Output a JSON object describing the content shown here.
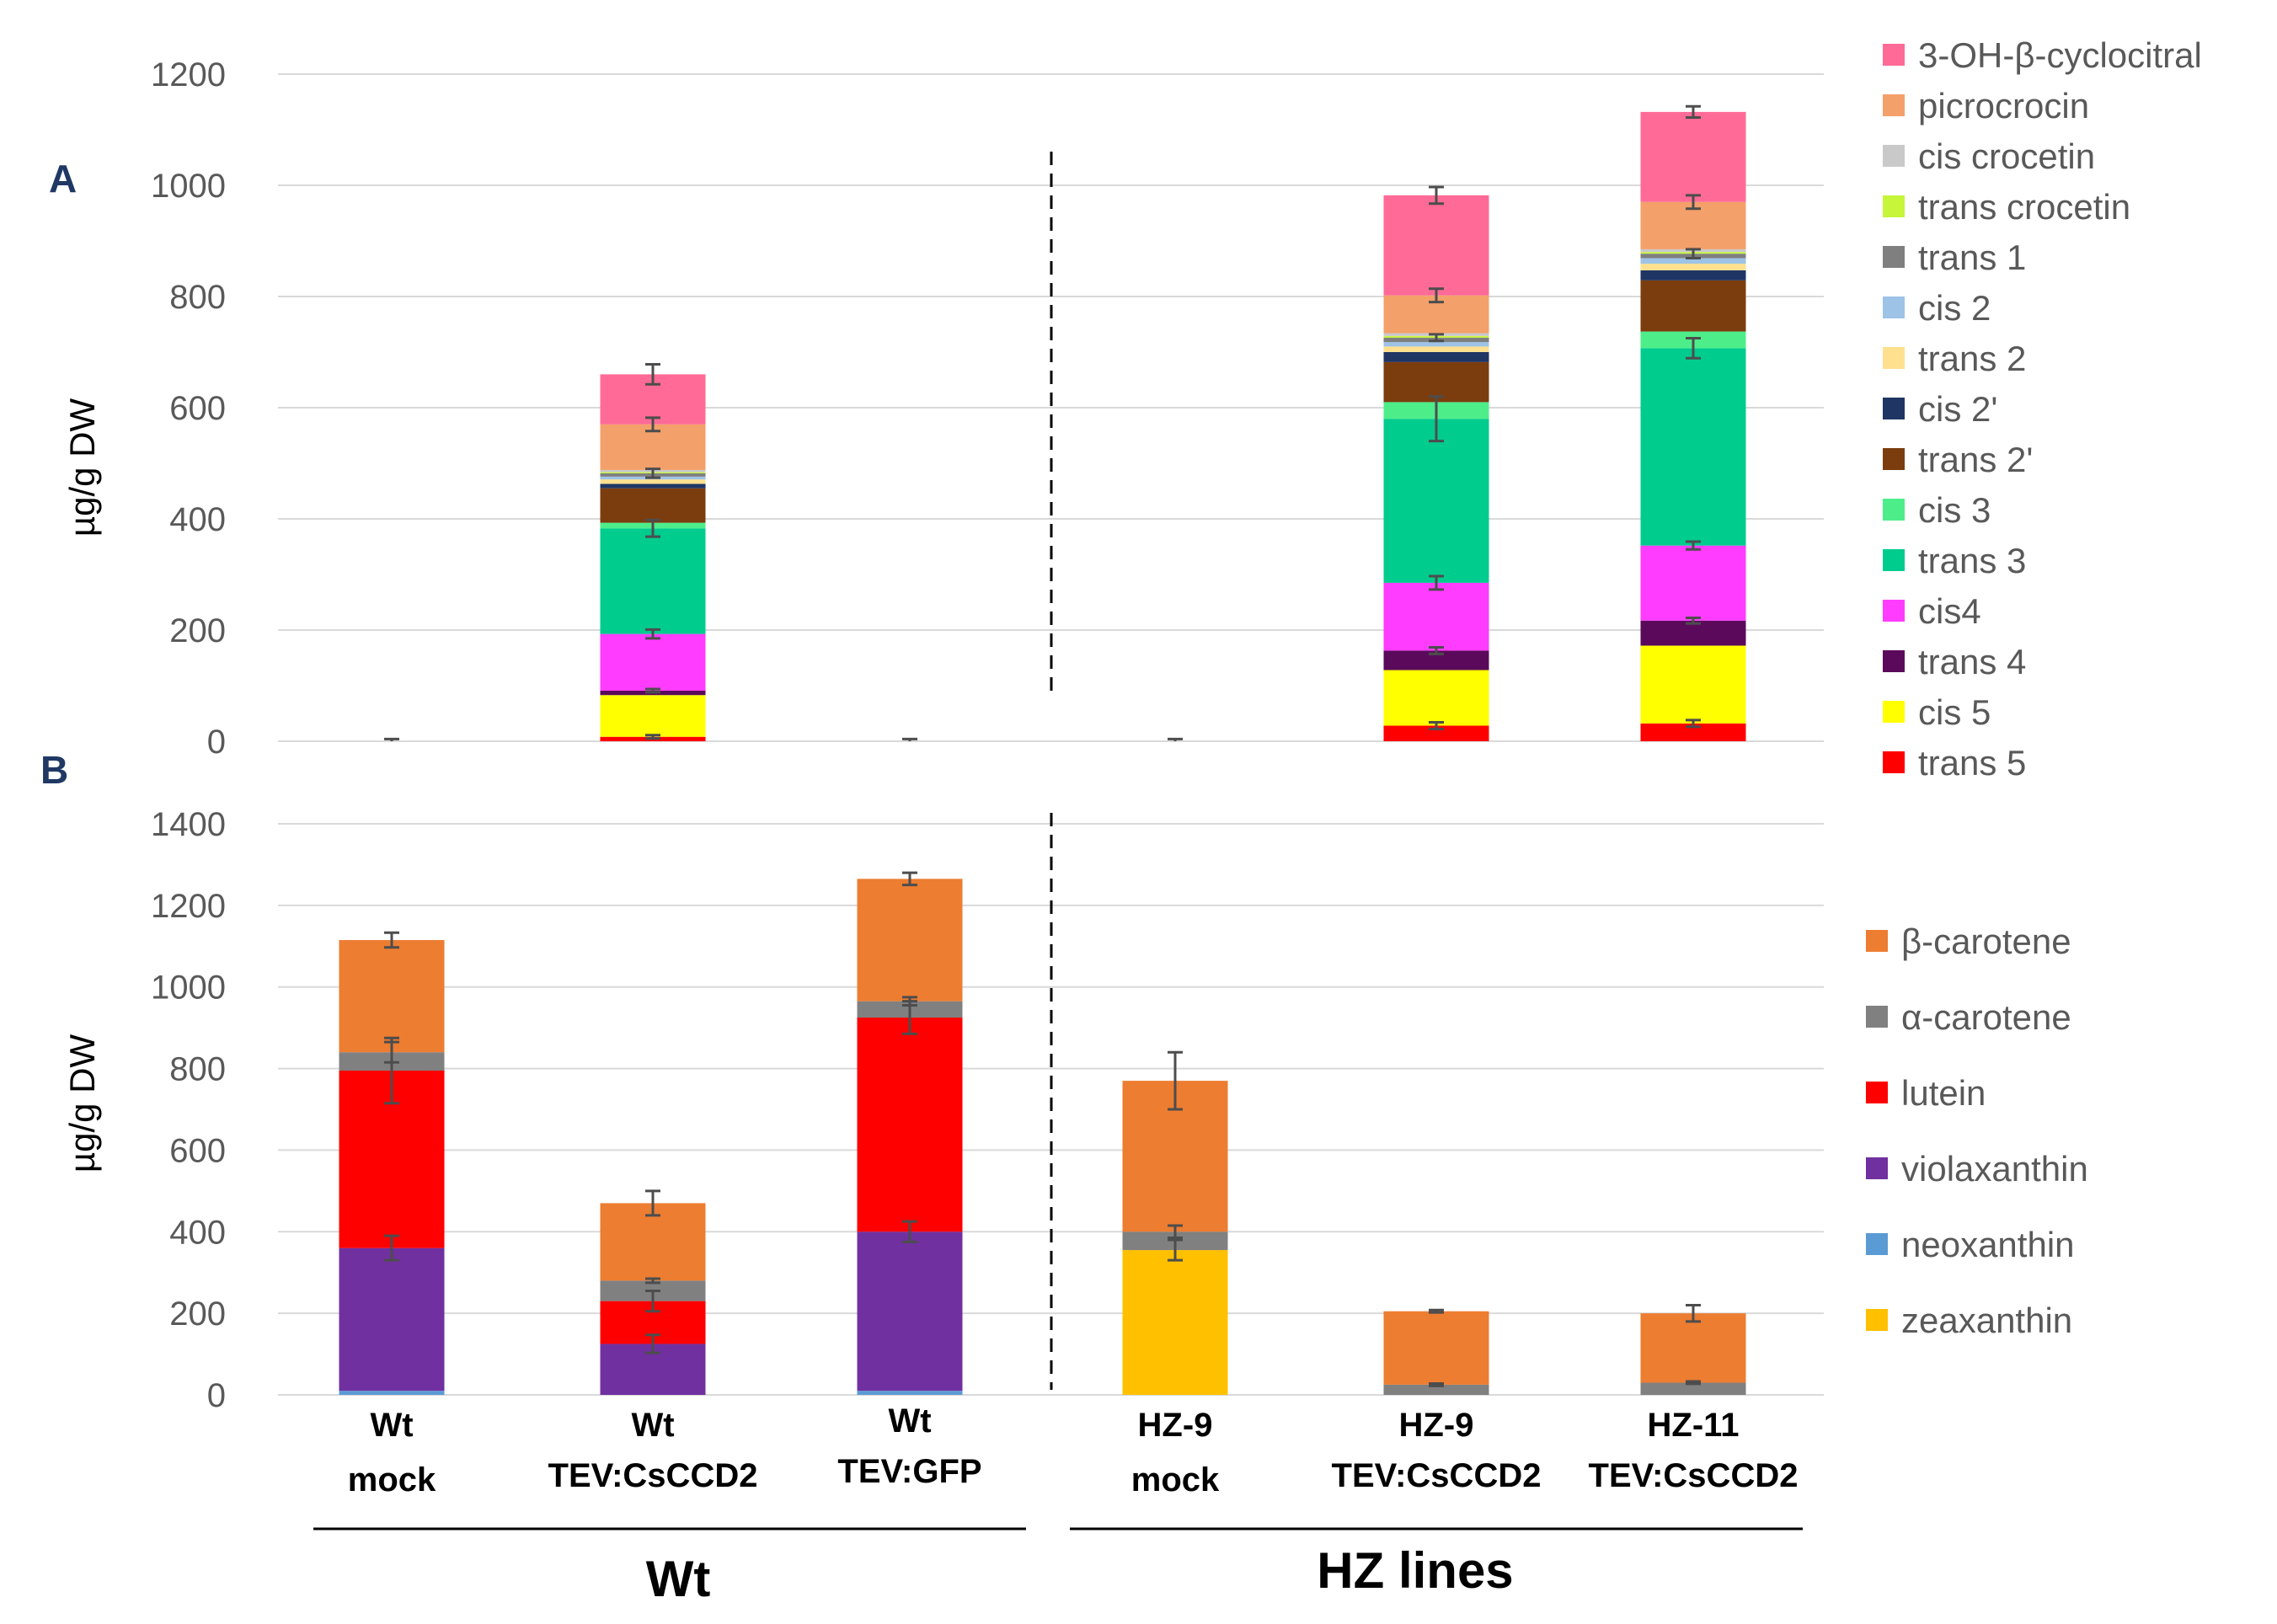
{
  "chart_data": [
    {
      "panel": "A",
      "type": "bar",
      "stacked": true,
      "ylabel": "µg/g DW",
      "ylim": [
        0,
        1200
      ],
      "ytick_step": 200,
      "yticks": [
        "0",
        "200",
        "400",
        "600",
        "800",
        "1000",
        "1200"
      ],
      "grid": true,
      "legend_position": "right",
      "categories": [
        "Wt mock",
        "Wt TEV:CsCCD2",
        "Wt TEV:GFP",
        "HZ-9 mock",
        "HZ-9 TEV:CsCCD2",
        "HZ-11 TEV:CsCCD2"
      ],
      "series": [
        {
          "name": "trans 5",
          "color": "#ff0000",
          "values": [
            0,
            8,
            0,
            0,
            28,
            32
          ],
          "errors": [
            0,
            3,
            0,
            0,
            6,
            6
          ]
        },
        {
          "name": "cis 5",
          "color": "#ffff00",
          "values": [
            0,
            75,
            0,
            0,
            100,
            140
          ],
          "errors": [
            0,
            0,
            0,
            0,
            0,
            0
          ]
        },
        {
          "name": "trans 4",
          "color": "#5b0a5b",
          "values": [
            0,
            8,
            0,
            0,
            35,
            45
          ],
          "errors": [
            0,
            3,
            0,
            0,
            6,
            5
          ]
        },
        {
          "name": "cis4",
          "color": "#ff3cff",
          "values": [
            0,
            102,
            0,
            0,
            122,
            135
          ],
          "errors": [
            0,
            8,
            0,
            0,
            12,
            7
          ]
        },
        {
          "name": "trans 3",
          "color": "#00cc8e",
          "values": [
            0,
            190,
            0,
            0,
            295,
            355
          ],
          "errors": [
            0,
            15,
            0,
            0,
            40,
            18
          ]
        },
        {
          "name": "cis 3",
          "color": "#4dee8a",
          "values": [
            0,
            10,
            0,
            0,
            30,
            30
          ],
          "errors": [
            0,
            0,
            0,
            0,
            0,
            0
          ]
        },
        {
          "name": "trans 2'",
          "color": "#7b3d0e",
          "values": [
            0,
            62,
            0,
            0,
            72,
            92
          ],
          "errors": [
            0,
            0,
            0,
            0,
            0,
            0
          ]
        },
        {
          "name": "cis 2'",
          "color": "#1f3564",
          "values": [
            0,
            8,
            0,
            0,
            18,
            18
          ],
          "errors": [
            0,
            0,
            0,
            0,
            0,
            0
          ]
        },
        {
          "name": "trans 2",
          "color": "#ffe08f",
          "values": [
            0,
            8,
            0,
            0,
            10,
            12
          ],
          "errors": [
            0,
            0,
            0,
            0,
            0,
            0
          ]
        },
        {
          "name": "cis 2",
          "color": "#9dc3e6",
          "values": [
            0,
            5,
            0,
            0,
            8,
            10
          ],
          "errors": [
            0,
            0,
            0,
            0,
            0,
            0
          ]
        },
        {
          "name": "trans 1",
          "color": "#7f7f7f",
          "values": [
            0,
            6,
            0,
            0,
            8,
            8
          ],
          "errors": [
            0,
            8,
            0,
            0,
            6,
            8
          ]
        },
        {
          "name": "trans crocetin",
          "color": "#c6f53a",
          "values": [
            0,
            2,
            0,
            0,
            3,
            3
          ],
          "errors": [
            0,
            0,
            0,
            0,
            0,
            0
          ]
        },
        {
          "name": "cis crocetin",
          "color": "#c9c9c9",
          "values": [
            0,
            4,
            0,
            0,
            5,
            5
          ],
          "errors": [
            0,
            0,
            0,
            0,
            0,
            0
          ]
        },
        {
          "name": "picrocrocin",
          "color": "#f4a06a",
          "values": [
            0,
            82,
            0,
            0,
            68,
            85
          ],
          "errors": [
            0,
            12,
            0,
            0,
            12,
            12
          ]
        },
        {
          "name": "3-OH-β-cyclocitral",
          "color": "#ff6b96",
          "values": [
            0,
            90,
            0,
            0,
            180,
            162
          ],
          "errors": [
            0,
            18,
            0,
            0,
            15,
            10
          ]
        }
      ],
      "zero_errors": [
        4,
        0,
        4,
        4,
        0,
        0
      ]
    },
    {
      "panel": "B",
      "type": "bar",
      "stacked": true,
      "ylabel": "µg/g DW",
      "ylim": [
        0,
        1400
      ],
      "ytick_step": 200,
      "yticks": [
        "0",
        "200",
        "400",
        "600",
        "800",
        "1000",
        "1200",
        "1400"
      ],
      "grid": true,
      "legend_position": "right",
      "categories": [
        "Wt mock",
        "Wt TEV:CsCCD2",
        "Wt TEV:GFP",
        "HZ-9 mock",
        "HZ-9 TEV:CsCCD2",
        "HZ-11 TEV:CsCCD2"
      ],
      "series": [
        {
          "name": "zeaxanthin",
          "color": "#ffc000",
          "values": [
            0,
            0,
            0,
            355,
            0,
            0
          ],
          "errors": [
            0,
            0,
            0,
            25,
            0,
            0
          ]
        },
        {
          "name": "neoxanthin",
          "color": "#5b9bd5",
          "values": [
            10,
            0,
            10,
            0,
            0,
            0
          ],
          "errors": [
            0,
            0,
            0,
            0,
            0,
            0
          ]
        },
        {
          "name": "violaxanthin",
          "color": "#7030a0",
          "values": [
            350,
            125,
            390,
            0,
            0,
            0
          ],
          "errors": [
            30,
            22,
            25,
            0,
            0,
            0
          ]
        },
        {
          "name": "lutein",
          "color": "#ff0000",
          "values": [
            435,
            105,
            525,
            0,
            0,
            0
          ],
          "errors": [
            80,
            25,
            40,
            0,
            0,
            0
          ]
        },
        {
          "name": "α-carotene",
          "color": "#808080",
          "values": [
            45,
            50,
            40,
            45,
            25,
            30
          ],
          "errors": [
            25,
            5,
            10,
            15,
            3,
            3
          ]
        },
        {
          "name": "β-carotene",
          "color": "#ed7d31",
          "values": [
            275,
            190,
            300,
            370,
            180,
            170
          ],
          "errors": [
            18,
            30,
            15,
            70,
            3,
            20
          ]
        }
      ]
    }
  ],
  "panel_labels": {
    "a": "A",
    "b": "B"
  },
  "x_labels": [
    {
      "line1": "Wt",
      "line2": "mock"
    },
    {
      "line1": "Wt",
      "line2": "TEV:CsCCD2"
    },
    {
      "line1": "Wt",
      "line2": "TEV:GFP"
    },
    {
      "line1": "HZ-9",
      "line2": "mock"
    },
    {
      "line1": "HZ-9",
      "line2": "TEV:CsCCD2"
    },
    {
      "line1": "HZ-11",
      "line2": "TEV:CsCCD2"
    }
  ],
  "group_labels": {
    "wt": "Wt",
    "hz": "HZ lines"
  },
  "legend_a": [
    "3-OH-β-cyclocitral",
    "picrocrocin",
    "cis crocetin",
    "trans crocetin",
    "trans 1",
    "cis 2",
    "trans 2",
    "cis 2'",
    "trans 2'",
    "cis 3",
    "trans 3",
    "cis4",
    "trans 4",
    "cis 5",
    "trans 5"
  ],
  "legend_b": [
    "β-carotene",
    "α-carotene",
    "lutein",
    "violaxanthin",
    "neoxanthin",
    "zeaxanthin"
  ]
}
